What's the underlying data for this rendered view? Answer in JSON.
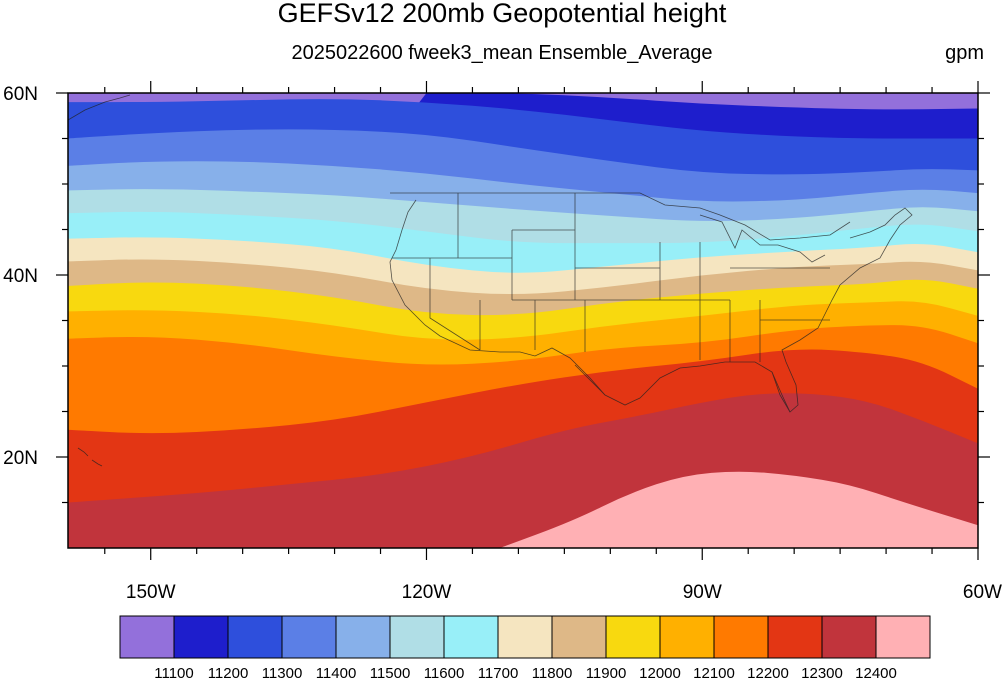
{
  "title": "GEFSv12 200mb Geopotential height",
  "subtitle": "2025022600 fweek3_mean Ensemble_Average",
  "units": "gpm",
  "chart_data": {
    "type": "heatmap",
    "title": "GEFSv12 200mb Geopotential height",
    "subtitle": "2025022600 fweek3_mean Ensemble_Average",
    "units": "gpm",
    "x_ticks": [
      "150W",
      "120W",
      "90W",
      "60W"
    ],
    "y_ticks": [
      "60N",
      "40N",
      "20N"
    ],
    "xlim": [
      -159,
      -60
    ],
    "ylim": [
      10,
      60
    ],
    "colorbar": {
      "levels": [
        11100,
        11200,
        11300,
        11400,
        11500,
        11600,
        11700,
        11800,
        11900,
        12000,
        12100,
        12200,
        12300,
        12400
      ],
      "labels": [
        "11100",
        "11200",
        "11300",
        "11400",
        "11500",
        "11600",
        "11700",
        "11800",
        "11900",
        "12000",
        "12100",
        "12200",
        "12300",
        "12400"
      ],
      "colors": [
        "#9370DB",
        "#1E1ECC",
        "#2E4FDC",
        "#5B7FE6",
        "#87B0EA",
        "#B0DEE6",
        "#98EFF8",
        "#F5E5C0",
        "#DEB887",
        "#F8D90F",
        "#FFB000",
        "#FF7A00",
        "#E33614",
        "#C1343C",
        "#FFB0B4"
      ]
    },
    "contour_bands": [
      {
        "lower": 12400,
        "color": "#FFB0B4"
      },
      {
        "lower": 12300,
        "color": "#C1343C"
      },
      {
        "lower": 12200,
        "color": "#E33614"
      },
      {
        "lower": 12100,
        "color": "#FF7A00"
      },
      {
        "lower": 12000,
        "color": "#FFB000"
      },
      {
        "lower": 11900,
        "color": "#F8D90F"
      },
      {
        "lower": 11800,
        "color": "#DEB887"
      },
      {
        "lower": 11700,
        "color": "#F5E5C0"
      },
      {
        "lower": 11600,
        "color": "#98EFF8"
      },
      {
        "lower": 11500,
        "color": "#B0DEE6"
      },
      {
        "lower": 11400,
        "color": "#87B0EA"
      },
      {
        "lower": 11300,
        "color": "#5B7FE6"
      },
      {
        "lower": 11200,
        "color": "#2E4FDC"
      },
      {
        "lower": 11100,
        "color": "#1E1ECC"
      },
      {
        "lower": 0,
        "color": "#9370DB"
      }
    ],
    "contour_lines": [
      {
        "level": 12400,
        "points": [
          [
            -112,
            10
          ],
          [
            -104,
            13
          ],
          [
            -98,
            16
          ],
          [
            -92,
            18
          ],
          [
            -86,
            18.5
          ],
          [
            -80,
            18
          ],
          [
            -74,
            17
          ],
          [
            -68,
            15
          ],
          [
            -60,
            12.5
          ]
        ]
      },
      {
        "level": 12300,
        "points": [
          [
            -159,
            15
          ],
          [
            -145,
            16
          ],
          [
            -135,
            17
          ],
          [
            -125,
            18
          ],
          [
            -115,
            20
          ],
          [
            -105,
            23
          ],
          [
            -97,
            24.5
          ],
          [
            -90,
            26
          ],
          [
            -84,
            27
          ],
          [
            -78,
            27
          ],
          [
            -72,
            26.2
          ],
          [
            -66,
            24
          ],
          [
            -60,
            21.5
          ]
        ]
      },
      {
        "level": 12200,
        "points": [
          [
            -159,
            23
          ],
          [
            -150,
            22.5
          ],
          [
            -140,
            23
          ],
          [
            -130,
            24
          ],
          [
            -120,
            26
          ],
          [
            -110,
            28
          ],
          [
            -100,
            29.5
          ],
          [
            -90,
            30.5
          ],
          [
            -80,
            32
          ],
          [
            -72,
            31.5
          ],
          [
            -66,
            30.5
          ],
          [
            -60,
            27.5
          ]
        ]
      },
      {
        "level": 12100,
        "points": [
          [
            -159,
            33
          ],
          [
            -150,
            33.3
          ],
          [
            -140,
            32.5
          ],
          [
            -130,
            31
          ],
          [
            -120,
            30
          ],
          [
            -110,
            30.5
          ],
          [
            -100,
            32
          ],
          [
            -90,
            32.5
          ],
          [
            -80,
            34
          ],
          [
            -72,
            34.5
          ],
          [
            -66,
            34.5
          ],
          [
            -60,
            32.5
          ]
        ]
      },
      {
        "level": 12000,
        "points": [
          [
            -159,
            36
          ],
          [
            -150,
            36.2
          ],
          [
            -140,
            35.7
          ],
          [
            -130,
            34.5
          ],
          [
            -120,
            32.8
          ],
          [
            -110,
            33
          ],
          [
            -100,
            34.5
          ],
          [
            -90,
            35.5
          ],
          [
            -80,
            36.7
          ],
          [
            -72,
            37
          ],
          [
            -66,
            37.2
          ],
          [
            -60,
            35.5
          ]
        ]
      },
      {
        "level": 11900,
        "points": [
          [
            -159,
            38.8
          ],
          [
            -150,
            39.3
          ],
          [
            -140,
            38.8
          ],
          [
            -130,
            37.6
          ],
          [
            -120,
            35.7
          ],
          [
            -110,
            35.5
          ],
          [
            -100,
            37
          ],
          [
            -90,
            38
          ],
          [
            -80,
            38.7
          ],
          [
            -72,
            39
          ],
          [
            -66,
            39.7
          ],
          [
            -60,
            38.5
          ]
        ]
      },
      {
        "level": 11800,
        "points": [
          [
            -159,
            41.5
          ],
          [
            -150,
            41.8
          ],
          [
            -140,
            41.3
          ],
          [
            -130,
            40.3
          ],
          [
            -120,
            38.4
          ],
          [
            -110,
            37.7
          ],
          [
            -100,
            38.7
          ],
          [
            -90,
            40
          ],
          [
            -80,
            40.9
          ],
          [
            -72,
            41.2
          ],
          [
            -66,
            41.6
          ],
          [
            -60,
            40.5
          ]
        ]
      },
      {
        "level": 11700,
        "points": [
          [
            -159,
            44
          ],
          [
            -150,
            44.2
          ],
          [
            -140,
            43.8
          ],
          [
            -130,
            43
          ],
          [
            -120,
            41
          ],
          [
            -110,
            40
          ],
          [
            -100,
            41
          ],
          [
            -90,
            42
          ],
          [
            -80,
            42.6
          ],
          [
            -72,
            43
          ],
          [
            -66,
            43.6
          ],
          [
            -60,
            42.5
          ]
        ]
      },
      {
        "level": 11600,
        "points": [
          [
            -159,
            46.8
          ],
          [
            -150,
            47
          ],
          [
            -140,
            46.6
          ],
          [
            -130,
            46
          ],
          [
            -120,
            44.8
          ],
          [
            -110,
            43.5
          ],
          [
            -100,
            43.5
          ],
          [
            -90,
            43.5
          ],
          [
            -80,
            44.3
          ],
          [
            -72,
            45.2
          ],
          [
            -66,
            45.7
          ],
          [
            -60,
            44.8
          ]
        ]
      },
      {
        "level": 11500,
        "points": [
          [
            -159,
            49.3
          ],
          [
            -150,
            49.5
          ],
          [
            -140,
            49.2
          ],
          [
            -130,
            48.8
          ],
          [
            -120,
            48
          ],
          [
            -110,
            47.2
          ],
          [
            -100,
            46.5
          ],
          [
            -90,
            45.8
          ],
          [
            -80,
            46.2
          ],
          [
            -72,
            47
          ],
          [
            -66,
            47.6
          ],
          [
            -60,
            47
          ]
        ]
      },
      {
        "level": 11400,
        "points": [
          [
            -159,
            52
          ],
          [
            -150,
            52.5
          ],
          [
            -140,
            52.5
          ],
          [
            -130,
            52
          ],
          [
            -120,
            51.2
          ],
          [
            -110,
            50
          ],
          [
            -100,
            49
          ],
          [
            -90,
            48
          ],
          [
            -80,
            48.2
          ],
          [
            -72,
            49
          ],
          [
            -66,
            49.5
          ],
          [
            -60,
            49
          ]
        ]
      },
      {
        "level": 11300,
        "points": [
          [
            -159,
            55
          ],
          [
            -150,
            55.6
          ],
          [
            -140,
            56
          ],
          [
            -130,
            56
          ],
          [
            -120,
            55.5
          ],
          [
            -110,
            54
          ],
          [
            -100,
            52.5
          ],
          [
            -90,
            51.2
          ],
          [
            -80,
            51
          ],
          [
            -72,
            51.3
          ],
          [
            -66,
            51.7
          ],
          [
            -60,
            51.5
          ]
        ]
      },
      {
        "level": 11200,
        "points": [
          [
            -159,
            59
          ],
          [
            -150,
            59
          ],
          [
            -140,
            59.2
          ],
          [
            -130,
            59.4
          ],
          [
            -120,
            59
          ],
          [
            -110,
            58.2
          ],
          [
            -100,
            57
          ],
          [
            -90,
            55.8
          ],
          [
            -80,
            55.2
          ],
          [
            -72,
            55
          ],
          [
            -66,
            55
          ],
          [
            -60,
            55
          ]
        ]
      },
      {
        "level": 11100,
        "points": [
          [
            -120,
            60
          ],
          [
            -110,
            60
          ],
          [
            -100,
            59.5
          ],
          [
            -90,
            58.8
          ],
          [
            -80,
            58.4
          ],
          [
            -72,
            58.2
          ],
          [
            -66,
            58.2
          ],
          [
            -60,
            58.3
          ]
        ]
      }
    ]
  }
}
